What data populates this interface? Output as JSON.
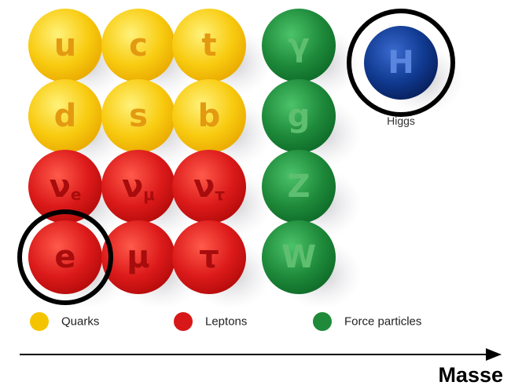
{
  "grid": [
    [
      {
        "symbol": "u"
      },
      {
        "symbol": "c"
      },
      {
        "symbol": "t"
      },
      {
        "symbol": "γ"
      }
    ],
    [
      {
        "symbol": "d"
      },
      {
        "symbol": "s"
      },
      {
        "symbol": "b"
      },
      {
        "symbol": "g"
      }
    ],
    [
      {
        "symbol": "ν",
        "sub": "e"
      },
      {
        "symbol": "ν",
        "sub": "μ"
      },
      {
        "symbol": "ν",
        "sub": "τ"
      },
      {
        "symbol": "Z"
      }
    ],
    [
      {
        "symbol": "e"
      },
      {
        "symbol": "μ"
      },
      {
        "symbol": "τ"
      },
      {
        "symbol": "W"
      }
    ]
  ],
  "higgs": {
    "symbol": "H",
    "caption": "Higgs"
  },
  "legend": [
    {
      "label": "Quarks",
      "color": "#f5c400"
    },
    {
      "label": "Leptons",
      "color": "#d81818"
    },
    {
      "label": "Force particles",
      "color": "#1e8a3a"
    }
  ],
  "axis_label": "Masse"
}
